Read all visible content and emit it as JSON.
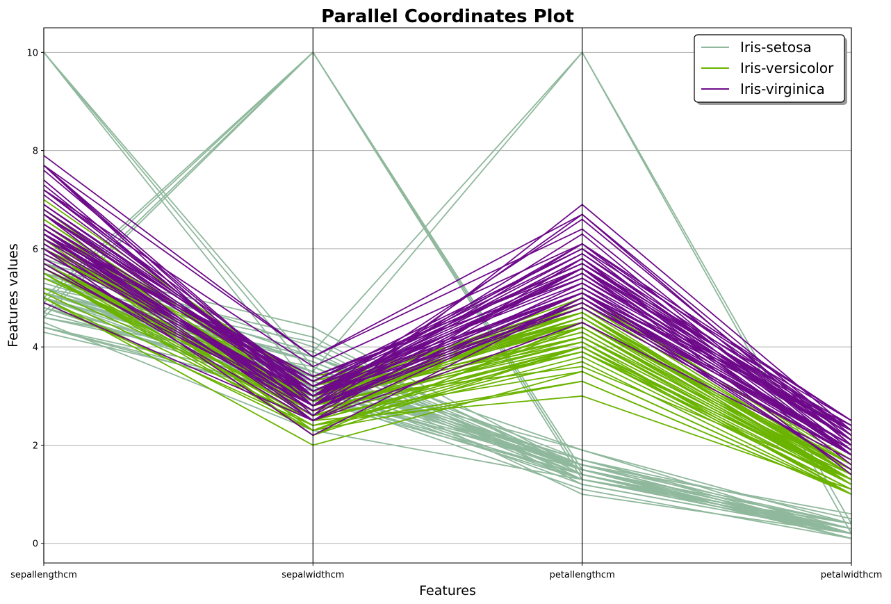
{
  "chart_data": {
    "type": "line",
    "subtype": "parallel-coordinates",
    "title": "Parallel Coordinates Plot",
    "xlabel": "Features",
    "ylabel": "Features values",
    "categories": [
      "sepallengthcm",
      "sepalwidthcm",
      "petallengthcm",
      "petalwidthcm"
    ],
    "ylim": [
      -0.4,
      10.5
    ],
    "yticks": [
      0,
      2,
      4,
      6,
      8,
      10
    ],
    "grid": "horizontal",
    "legend_position": "top-right",
    "series": [
      {
        "name": "Iris-setosa",
        "color": "#8fb89c",
        "lines": [
          [
            10,
            3.6,
            1.4,
            0.2
          ],
          [
            10,
            3.4,
            1.6,
            0.2
          ],
          [
            10,
            3.1,
            1.5,
            0.1
          ],
          [
            4.9,
            10,
            1.4,
            0.2
          ],
          [
            4.7,
            10,
            1.3,
            0.2
          ],
          [
            4.6,
            10,
            1.5,
            0.2
          ],
          [
            5.0,
            10,
            1.4,
            0.2
          ],
          [
            5.1,
            3.5,
            10,
            0.2
          ],
          [
            5.4,
            3.9,
            10,
            0.4
          ],
          [
            4.6,
            3.4,
            1.4,
            0.3
          ],
          [
            5.0,
            3.4,
            1.5,
            0.2
          ],
          [
            4.4,
            2.9,
            1.4,
            0.2
          ],
          [
            4.9,
            3.1,
            1.5,
            0.1
          ],
          [
            5.4,
            3.7,
            1.5,
            0.2
          ],
          [
            4.8,
            3.4,
            1.6,
            0.2
          ],
          [
            4.8,
            3.0,
            1.4,
            0.1
          ],
          [
            4.3,
            3.0,
            1.1,
            0.1
          ],
          [
            5.8,
            4.0,
            1.2,
            0.2
          ],
          [
            5.7,
            4.4,
            1.5,
            0.4
          ],
          [
            5.4,
            3.9,
            1.3,
            0.4
          ],
          [
            5.1,
            3.5,
            1.4,
            0.3
          ],
          [
            5.7,
            3.8,
            1.7,
            0.3
          ],
          [
            5.1,
            3.8,
            1.5,
            0.3
          ],
          [
            5.4,
            3.4,
            1.7,
            0.2
          ],
          [
            5.1,
            3.7,
            1.5,
            0.4
          ],
          [
            4.6,
            3.6,
            1.0,
            0.2
          ],
          [
            5.1,
            3.3,
            1.7,
            0.5
          ],
          [
            4.8,
            3.4,
            1.9,
            0.2
          ],
          [
            5.0,
            3.0,
            1.6,
            0.2
          ],
          [
            5.0,
            3.4,
            1.6,
            0.4
          ],
          [
            5.2,
            3.5,
            1.5,
            0.2
          ],
          [
            5.2,
            3.4,
            1.4,
            0.2
          ],
          [
            4.7,
            3.2,
            1.6,
            0.2
          ],
          [
            4.8,
            3.1,
            1.6,
            0.2
          ],
          [
            5.4,
            3.4,
            1.5,
            0.4
          ],
          [
            5.2,
            4.1,
            1.5,
            0.1
          ],
          [
            5.5,
            4.2,
            1.4,
            0.2
          ],
          [
            4.9,
            3.1,
            1.5,
            0.1
          ],
          [
            5.0,
            3.2,
            1.2,
            0.2
          ],
          [
            5.5,
            3.5,
            1.3,
            0.2
          ],
          [
            4.4,
            3.0,
            1.3,
            0.2
          ],
          [
            5.1,
            3.4,
            1.5,
            0.2
          ],
          [
            5.0,
            3.5,
            1.3,
            0.3
          ],
          [
            4.5,
            2.3,
            1.3,
            0.3
          ],
          [
            4.4,
            3.2,
            1.3,
            0.2
          ],
          [
            5.0,
            3.5,
            1.6,
            0.6
          ],
          [
            5.1,
            3.8,
            1.9,
            0.4
          ],
          [
            4.8,
            3.0,
            1.4,
            0.3
          ],
          [
            5.1,
            3.8,
            1.6,
            0.2
          ],
          [
            5.3,
            3.7,
            1.5,
            0.2
          ]
        ]
      },
      {
        "name": "Iris-versicolor",
        "color": "#6ab300",
        "lines": [
          [
            7.0,
            3.2,
            4.7,
            1.4
          ],
          [
            6.4,
            3.2,
            4.5,
            1.5
          ],
          [
            6.9,
            3.1,
            4.9,
            1.5
          ],
          [
            5.5,
            2.3,
            4.0,
            1.3
          ],
          [
            6.5,
            2.8,
            4.6,
            1.5
          ],
          [
            5.7,
            2.8,
            4.5,
            1.3
          ],
          [
            6.3,
            3.3,
            4.7,
            1.6
          ],
          [
            4.9,
            2.4,
            3.3,
            1.0
          ],
          [
            6.6,
            2.9,
            4.6,
            1.3
          ],
          [
            5.2,
            2.7,
            3.9,
            1.4
          ],
          [
            5.0,
            2.0,
            3.5,
            1.0
          ],
          [
            5.9,
            3.0,
            4.2,
            1.5
          ],
          [
            6.0,
            2.2,
            4.0,
            1.0
          ],
          [
            6.1,
            2.9,
            4.7,
            1.4
          ],
          [
            5.6,
            2.9,
            3.6,
            1.3
          ],
          [
            6.7,
            3.1,
            4.4,
            1.4
          ],
          [
            5.6,
            3.0,
            4.5,
            1.5
          ],
          [
            5.8,
            2.7,
            4.1,
            1.0
          ],
          [
            6.2,
            2.2,
            4.5,
            1.5
          ],
          [
            5.6,
            2.5,
            3.9,
            1.1
          ],
          [
            5.9,
            3.2,
            4.8,
            1.8
          ],
          [
            6.1,
            2.8,
            4.0,
            1.3
          ],
          [
            6.3,
            2.5,
            4.9,
            1.5
          ],
          [
            6.1,
            2.8,
            4.7,
            1.2
          ],
          [
            6.4,
            2.9,
            4.3,
            1.3
          ],
          [
            6.6,
            3.0,
            4.4,
            1.4
          ],
          [
            6.8,
            2.8,
            4.8,
            1.4
          ],
          [
            6.7,
            3.0,
            5.0,
            1.7
          ],
          [
            6.0,
            2.9,
            4.5,
            1.5
          ],
          [
            5.7,
            2.6,
            3.5,
            1.0
          ],
          [
            5.5,
            2.4,
            3.8,
            1.1
          ],
          [
            5.5,
            2.4,
            3.7,
            1.0
          ],
          [
            5.8,
            2.7,
            3.9,
            1.2
          ],
          [
            6.0,
            2.7,
            5.1,
            1.6
          ],
          [
            5.4,
            3.0,
            4.5,
            1.5
          ],
          [
            6.0,
            3.4,
            4.5,
            1.6
          ],
          [
            6.7,
            3.1,
            4.7,
            1.5
          ],
          [
            6.3,
            2.3,
            4.4,
            1.3
          ],
          [
            5.6,
            3.0,
            4.1,
            1.3
          ],
          [
            5.5,
            2.5,
            4.0,
            1.3
          ],
          [
            5.5,
            2.6,
            4.4,
            1.2
          ],
          [
            6.1,
            3.0,
            4.6,
            1.4
          ],
          [
            5.8,
            2.6,
            4.0,
            1.2
          ],
          [
            5.0,
            2.3,
            3.3,
            1.0
          ],
          [
            5.6,
            2.7,
            4.2,
            1.3
          ],
          [
            5.7,
            3.0,
            4.2,
            1.2
          ],
          [
            5.7,
            2.9,
            4.2,
            1.3
          ],
          [
            6.2,
            2.9,
            4.3,
            1.3
          ],
          [
            5.1,
            2.5,
            3.0,
            1.1
          ],
          [
            5.7,
            2.8,
            4.1,
            1.3
          ]
        ]
      },
      {
        "name": "Iris-virginica",
        "color": "#6e0a8a",
        "lines": [
          [
            6.3,
            3.3,
            6.0,
            2.5
          ],
          [
            5.8,
            2.7,
            5.1,
            1.9
          ],
          [
            7.1,
            3.0,
            5.9,
            2.1
          ],
          [
            6.3,
            2.9,
            5.6,
            1.8
          ],
          [
            6.5,
            3.0,
            5.8,
            2.2
          ],
          [
            7.6,
            3.0,
            6.6,
            2.1
          ],
          [
            4.9,
            2.5,
            4.5,
            1.7
          ],
          [
            7.3,
            2.9,
            6.3,
            1.8
          ],
          [
            6.7,
            2.5,
            5.8,
            1.8
          ],
          [
            7.2,
            3.6,
            6.1,
            2.5
          ],
          [
            6.5,
            3.2,
            5.1,
            2.0
          ],
          [
            6.4,
            2.7,
            5.3,
            1.9
          ],
          [
            6.8,
            3.0,
            5.5,
            2.1
          ],
          [
            5.7,
            2.5,
            5.0,
            2.0
          ],
          [
            5.8,
            2.8,
            5.1,
            2.4
          ],
          [
            6.4,
            3.2,
            5.3,
            2.3
          ],
          [
            6.5,
            3.0,
            5.5,
            1.8
          ],
          [
            7.7,
            3.8,
            6.7,
            2.2
          ],
          [
            7.7,
            2.6,
            6.9,
            2.3
          ],
          [
            6.0,
            2.2,
            5.0,
            1.5
          ],
          [
            6.9,
            3.2,
            5.7,
            2.3
          ],
          [
            5.6,
            2.8,
            4.9,
            2.0
          ],
          [
            7.7,
            2.8,
            6.7,
            2.0
          ],
          [
            6.3,
            2.7,
            4.9,
            1.8
          ],
          [
            6.7,
            3.3,
            5.7,
            2.1
          ],
          [
            7.2,
            3.2,
            6.0,
            1.8
          ],
          [
            6.2,
            2.8,
            4.8,
            1.8
          ],
          [
            6.1,
            3.0,
            4.9,
            1.8
          ],
          [
            6.4,
            2.8,
            5.6,
            2.1
          ],
          [
            7.2,
            3.0,
            5.8,
            1.6
          ],
          [
            7.4,
            2.8,
            6.1,
            1.9
          ],
          [
            7.9,
            3.8,
            6.4,
            2.0
          ],
          [
            6.4,
            2.8,
            5.6,
            2.2
          ],
          [
            6.3,
            2.8,
            5.1,
            1.5
          ],
          [
            6.1,
            2.6,
            5.6,
            1.4
          ],
          [
            7.7,
            3.0,
            6.1,
            2.3
          ],
          [
            6.3,
            3.4,
            5.6,
            2.4
          ],
          [
            6.4,
            3.1,
            5.5,
            1.8
          ],
          [
            6.0,
            3.0,
            4.8,
            1.8
          ],
          [
            6.9,
            3.1,
            5.4,
            2.1
          ],
          [
            6.7,
            3.1,
            5.6,
            2.4
          ],
          [
            6.9,
            3.1,
            5.1,
            2.3
          ],
          [
            5.8,
            2.7,
            5.1,
            1.9
          ],
          [
            6.8,
            3.2,
            5.9,
            2.3
          ],
          [
            6.7,
            3.3,
            5.7,
            2.5
          ],
          [
            6.7,
            3.0,
            5.2,
            2.3
          ],
          [
            6.3,
            2.5,
            5.0,
            1.9
          ],
          [
            6.5,
            3.0,
            5.2,
            2.0
          ],
          [
            6.2,
            3.4,
            5.4,
            2.3
          ],
          [
            5.9,
            3.0,
            5.1,
            1.8
          ]
        ]
      }
    ]
  }
}
